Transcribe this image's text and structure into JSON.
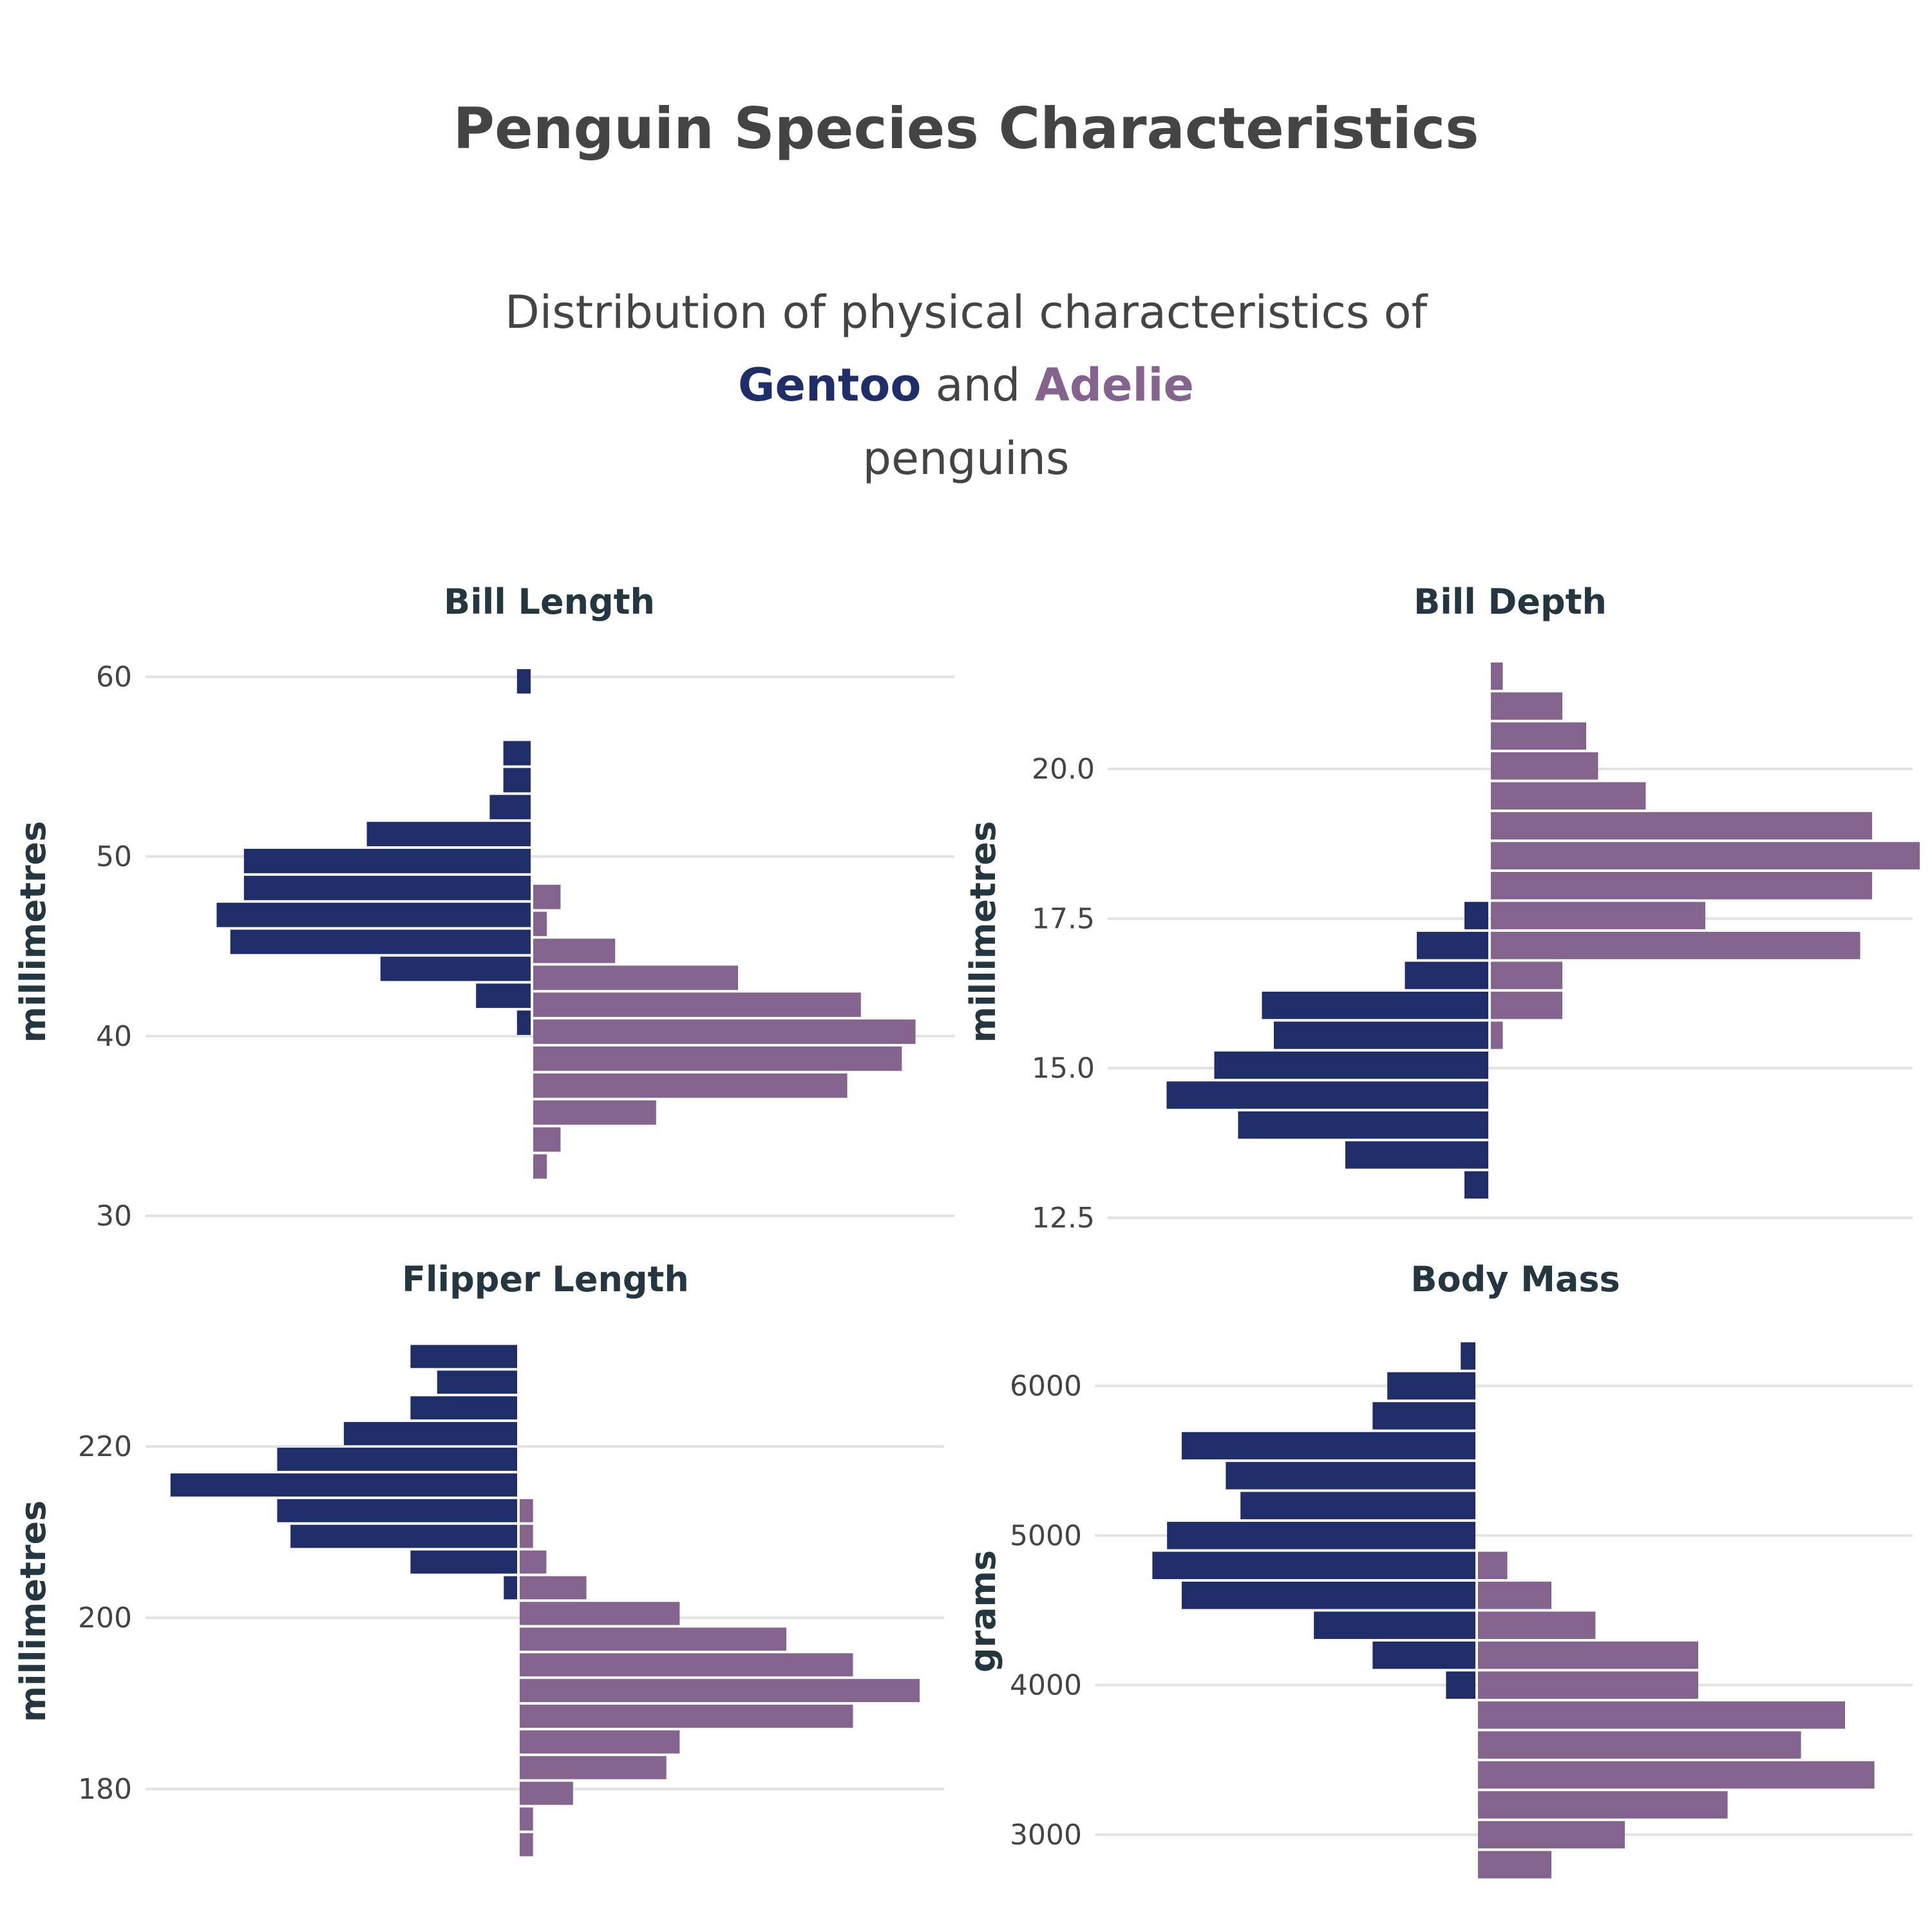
{
  "title": "Penguin Species Characteristics",
  "subtitle": {
    "line1": "Distribution of physical characteristics of",
    "gentoo": "Gentoo",
    "and": "and",
    "adelie": "Adelie",
    "line3": "penguins"
  },
  "colors": {
    "gentoo": "#1f2d69",
    "adelie": "#85638f",
    "grid": "#e3e3e3",
    "text": "#444444",
    "panel_title": "#243640"
  },
  "chart_data": [
    {
      "type": "bar",
      "title": "Bill Length",
      "ylabel": "millimetres",
      "ylim": [
        30,
        60
      ],
      "yticks": [
        {
          "v": 30,
          "label": "30"
        },
        {
          "v": 40,
          "label": "40"
        },
        {
          "v": 50,
          "label": "50"
        },
        {
          "v": 60,
          "label": "60"
        }
      ],
      "series": [
        {
          "name": "Gentoo",
          "direction": "left",
          "bins": [
            [
              40,
              41.5,
              1
            ],
            [
              41.5,
              43,
              4
            ],
            [
              43,
              44.5,
              11
            ],
            [
              44.5,
              46,
              22
            ],
            [
              46,
              47.5,
              23
            ],
            [
              47.5,
              49,
              21
            ],
            [
              49,
              50.5,
              21
            ],
            [
              50.5,
              52,
              12
            ],
            [
              52,
              53.5,
              3
            ],
            [
              53.5,
              55,
              2
            ],
            [
              55,
              56.5,
              2
            ],
            [
              59,
              60.5,
              1
            ]
          ]
        },
        {
          "name": "Adelie",
          "direction": "right",
          "bins": [
            [
              32,
              33.5,
              1
            ],
            [
              33.5,
              35,
              2
            ],
            [
              35,
              36.5,
              9
            ],
            [
              36.5,
              38,
              23
            ],
            [
              38,
              39.5,
              27
            ],
            [
              39.5,
              41,
              28
            ],
            [
              41,
              42.5,
              24
            ],
            [
              42.5,
              44,
              15
            ],
            [
              44,
              45.5,
              6
            ],
            [
              45.5,
              47,
              1
            ],
            [
              47,
              48.5,
              2
            ]
          ]
        }
      ]
    },
    {
      "type": "bar",
      "title": "Bill Depth",
      "ylabel": "millimetres",
      "ylim": [
        12.5,
        21.5
      ],
      "yticks": [
        {
          "v": 12.5,
          "label": "12.5"
        },
        {
          "v": 15,
          "label": "15.0"
        },
        {
          "v": 17.5,
          "label": "17.5"
        },
        {
          "v": 20,
          "label": "20.0"
        }
      ],
      "series": [
        {
          "name": "Gentoo",
          "direction": "left",
          "bins": [
            [
              12.8,
              13.3,
              2
            ],
            [
              13.3,
              13.8,
              12
            ],
            [
              13.8,
              14.3,
              21
            ],
            [
              14.3,
              14.8,
              27
            ],
            [
              14.8,
              15.3,
              23
            ],
            [
              15.3,
              15.8,
              18
            ],
            [
              15.8,
              16.3,
              19
            ],
            [
              16.3,
              16.8,
              7
            ],
            [
              16.8,
              17.3,
              6
            ],
            [
              17.3,
              17.8,
              2
            ]
          ]
        },
        {
          "name": "Adelie",
          "direction": "right",
          "bins": [
            [
              15.3,
              15.8,
              1
            ],
            [
              15.8,
              16.3,
              6
            ],
            [
              16.3,
              16.8,
              6
            ],
            [
              16.8,
              17.3,
              31
            ],
            [
              17.3,
              17.8,
              18
            ],
            [
              17.8,
              18.3,
              32
            ],
            [
              18.3,
              18.8,
              36
            ],
            [
              18.8,
              19.3,
              32
            ],
            [
              19.3,
              19.8,
              13
            ],
            [
              19.8,
              20.3,
              9
            ],
            [
              20.3,
              20.8,
              8
            ],
            [
              20.8,
              21.3,
              6
            ],
            [
              21.3,
              21.8,
              1
            ]
          ]
        }
      ]
    },
    {
      "type": "bar",
      "title": "Flipper Length",
      "ylabel": "millimetres",
      "ylim": [
        170,
        233
      ],
      "yticks": [
        {
          "v": 180,
          "label": "180"
        },
        {
          "v": 200,
          "label": "200"
        },
        {
          "v": 220,
          "label": "220"
        }
      ],
      "series": [
        {
          "name": "Gentoo",
          "direction": "left",
          "bins": [
            [
              202,
              205,
              1
            ],
            [
              205,
              208,
              8
            ],
            [
              208,
              211,
              17
            ],
            [
              211,
              214,
              18
            ],
            [
              214,
              217,
              26
            ],
            [
              217,
              220,
              18
            ],
            [
              220,
              223,
              13
            ],
            [
              223,
              226,
              8
            ],
            [
              226,
              229,
              6
            ],
            [
              229,
              232,
              8
            ]
          ]
        },
        {
          "name": "Adelie",
          "direction": "right",
          "bins": [
            [
              172,
              175,
              1
            ],
            [
              175,
              178,
              1
            ],
            [
              178,
              181,
              4
            ],
            [
              181,
              184,
              11
            ],
            [
              184,
              187,
              12
            ],
            [
              187,
              190,
              25
            ],
            [
              190,
              193,
              30
            ],
            [
              193,
              196,
              25
            ],
            [
              196,
              199,
              20
            ],
            [
              199,
              202,
              12
            ],
            [
              202,
              205,
              5
            ],
            [
              205,
              208,
              2
            ],
            [
              208,
              211,
              1
            ],
            [
              211,
              214,
              1
            ]
          ]
        }
      ]
    },
    {
      "type": "bar",
      "title": "Body Mass",
      "ylabel": "grams",
      "ylim": [
        2700,
        6350
      ],
      "yticks": [
        {
          "v": 3000,
          "label": "3000"
        },
        {
          "v": 4000,
          "label": "4000"
        },
        {
          "v": 5000,
          "label": "5000"
        },
        {
          "v": 6000,
          "label": "6000"
        }
      ],
      "series": [
        {
          "name": "Gentoo",
          "direction": "left",
          "bins": [
            [
              3900,
              4100,
              2
            ],
            [
              4100,
              4300,
              7
            ],
            [
              4300,
              4500,
              11
            ],
            [
              4500,
              4700,
              20
            ],
            [
              4700,
              4900,
              22
            ],
            [
              4900,
              5100,
              21
            ],
            [
              5100,
              5300,
              16
            ],
            [
              5300,
              5500,
              17
            ],
            [
              5500,
              5700,
              20
            ],
            [
              5700,
              5900,
              7
            ],
            [
              5900,
              6100,
              6
            ],
            [
              6100,
              6300,
              1
            ]
          ]
        },
        {
          "name": "Adelie",
          "direction": "right",
          "bins": [
            [
              2700,
              2900,
              5
            ],
            [
              2900,
              3100,
              10
            ],
            [
              3100,
              3300,
              17
            ],
            [
              3300,
              3500,
              27
            ],
            [
              3500,
              3700,
              22
            ],
            [
              3700,
              3900,
              25
            ],
            [
              3900,
              4100,
              15
            ],
            [
              4100,
              4300,
              15
            ],
            [
              4300,
              4500,
              8
            ],
            [
              4500,
              4700,
              5
            ],
            [
              4700,
              4900,
              2
            ]
          ]
        }
      ]
    }
  ]
}
